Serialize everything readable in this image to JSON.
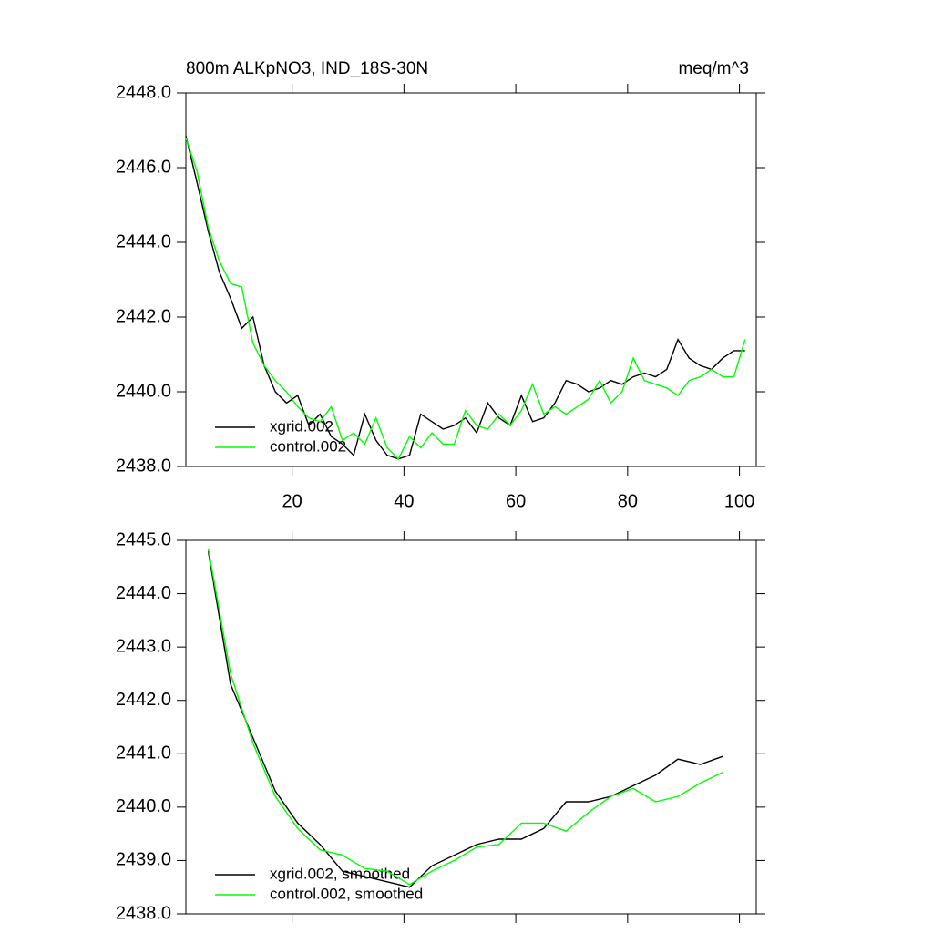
{
  "chart_data": [
    {
      "type": "line",
      "title": "800m ALKpNO3, IND_18S-30N",
      "y_label": "meq/m^3",
      "x": [
        1,
        3,
        5,
        7,
        9,
        11,
        13,
        15,
        17,
        19,
        21,
        23,
        25,
        27,
        29,
        31,
        33,
        35,
        37,
        39,
        41,
        43,
        45,
        47,
        49,
        51,
        53,
        55,
        57,
        59,
        61,
        63,
        65,
        67,
        69,
        71,
        73,
        75,
        77,
        79,
        81,
        83,
        85,
        87,
        89,
        91,
        93,
        95,
        97,
        99,
        101
      ],
      "series": [
        {
          "name": "xgrid.002",
          "color": "#000000",
          "values": [
            2446.85,
            2445.6,
            2444.3,
            2443.2,
            2442.5,
            2441.7,
            2442.0,
            2440.7,
            2440.0,
            2439.7,
            2439.9,
            2439.1,
            2439.4,
            2438.8,
            2438.6,
            2438.3,
            2439.4,
            2438.7,
            2438.3,
            2438.2,
            2438.3,
            2439.4,
            2439.2,
            2439.0,
            2439.1,
            2439.3,
            2438.9,
            2439.7,
            2439.3,
            2439.1,
            2439.9,
            2439.2,
            2439.3,
            2439.7,
            2440.3,
            2440.2,
            2440.0,
            2440.1,
            2440.3,
            2440.2,
            2440.4,
            2440.5,
            2440.4,
            2440.6,
            2441.4,
            2440.9,
            2440.7,
            2440.6,
            2440.9,
            2441.1,
            2441.1
          ]
        },
        {
          "name": "control.002",
          "color": "#00ff00",
          "values": [
            2446.8,
            2445.9,
            2444.4,
            2443.5,
            2442.9,
            2442.8,
            2441.3,
            2440.7,
            2440.3,
            2440.0,
            2439.6,
            2439.3,
            2439.2,
            2439.6,
            2438.7,
            2438.9,
            2438.6,
            2439.3,
            2438.5,
            2438.2,
            2438.8,
            2438.5,
            2438.9,
            2438.6,
            2438.6,
            2439.5,
            2439.1,
            2439.0,
            2439.4,
            2439.1,
            2439.5,
            2440.2,
            2439.4,
            2439.6,
            2439.4,
            2439.6,
            2439.8,
            2440.3,
            2439.7,
            2440.0,
            2440.9,
            2440.3,
            2440.2,
            2440.1,
            2439.9,
            2440.3,
            2440.4,
            2440.6,
            2440.4,
            2440.4,
            2441.4
          ]
        }
      ],
      "xlim": [
        1,
        103
      ],
      "xticks": [
        20,
        40,
        60,
        80,
        100
      ],
      "ylim": [
        2438,
        2448
      ],
      "yticks": [
        {
          "value": 2438,
          "label": "2438.0"
        },
        {
          "value": 2440,
          "label": "2440.0"
        },
        {
          "value": 2442,
          "label": "2442.0"
        },
        {
          "value": 2444,
          "label": "2444.0"
        },
        {
          "value": 2446,
          "label": "2446.0"
        },
        {
          "value": 2448,
          "label": "2448.0"
        }
      ],
      "legend": "lower-left"
    },
    {
      "type": "line",
      "x": [
        5,
        9,
        13,
        17,
        21,
        25,
        29,
        33,
        37,
        41,
        45,
        49,
        53,
        57,
        61,
        65,
        69,
        73,
        77,
        81,
        85,
        89,
        93,
        97
      ],
      "series": [
        {
          "name": "xgrid.002, smoothed",
          "color": "#000000",
          "values": [
            2444.8,
            2442.3,
            2441.3,
            2440.3,
            2439.7,
            2439.3,
            2438.8,
            2438.7,
            2438.6,
            2438.5,
            2438.9,
            2439.1,
            2439.3,
            2439.4,
            2439.4,
            2439.6,
            2440.1,
            2440.1,
            2440.2,
            2440.4,
            2440.6,
            2440.9,
            2440.8,
            2440.95
          ]
        },
        {
          "name": "control.002, smoothed",
          "color": "#00ff00",
          "values": [
            2444.85,
            2442.5,
            2441.2,
            2440.2,
            2439.6,
            2439.2,
            2439.1,
            2438.85,
            2438.8,
            2438.55,
            2438.8,
            2439.0,
            2439.25,
            2439.3,
            2439.7,
            2439.7,
            2439.55,
            2439.9,
            2440.2,
            2440.35,
            2440.1,
            2440.2,
            2440.45,
            2440.65
          ]
        }
      ],
      "xlim": [
        1,
        103
      ],
      "xticks": [
        20,
        40,
        60,
        80,
        100
      ],
      "ylim": [
        2438,
        2445
      ],
      "yticks": [
        {
          "value": 2438,
          "label": "2438.0"
        },
        {
          "value": 2439,
          "label": "2439.0"
        },
        {
          "value": 2440,
          "label": "2440.0"
        },
        {
          "value": 2441,
          "label": "2441.0"
        },
        {
          "value": 2442,
          "label": "2442.0"
        },
        {
          "value": 2443,
          "label": "2443.0"
        },
        {
          "value": 2444,
          "label": "2444.0"
        },
        {
          "value": 2445,
          "label": "2445.0"
        }
      ],
      "legend": "lower-left"
    }
  ]
}
